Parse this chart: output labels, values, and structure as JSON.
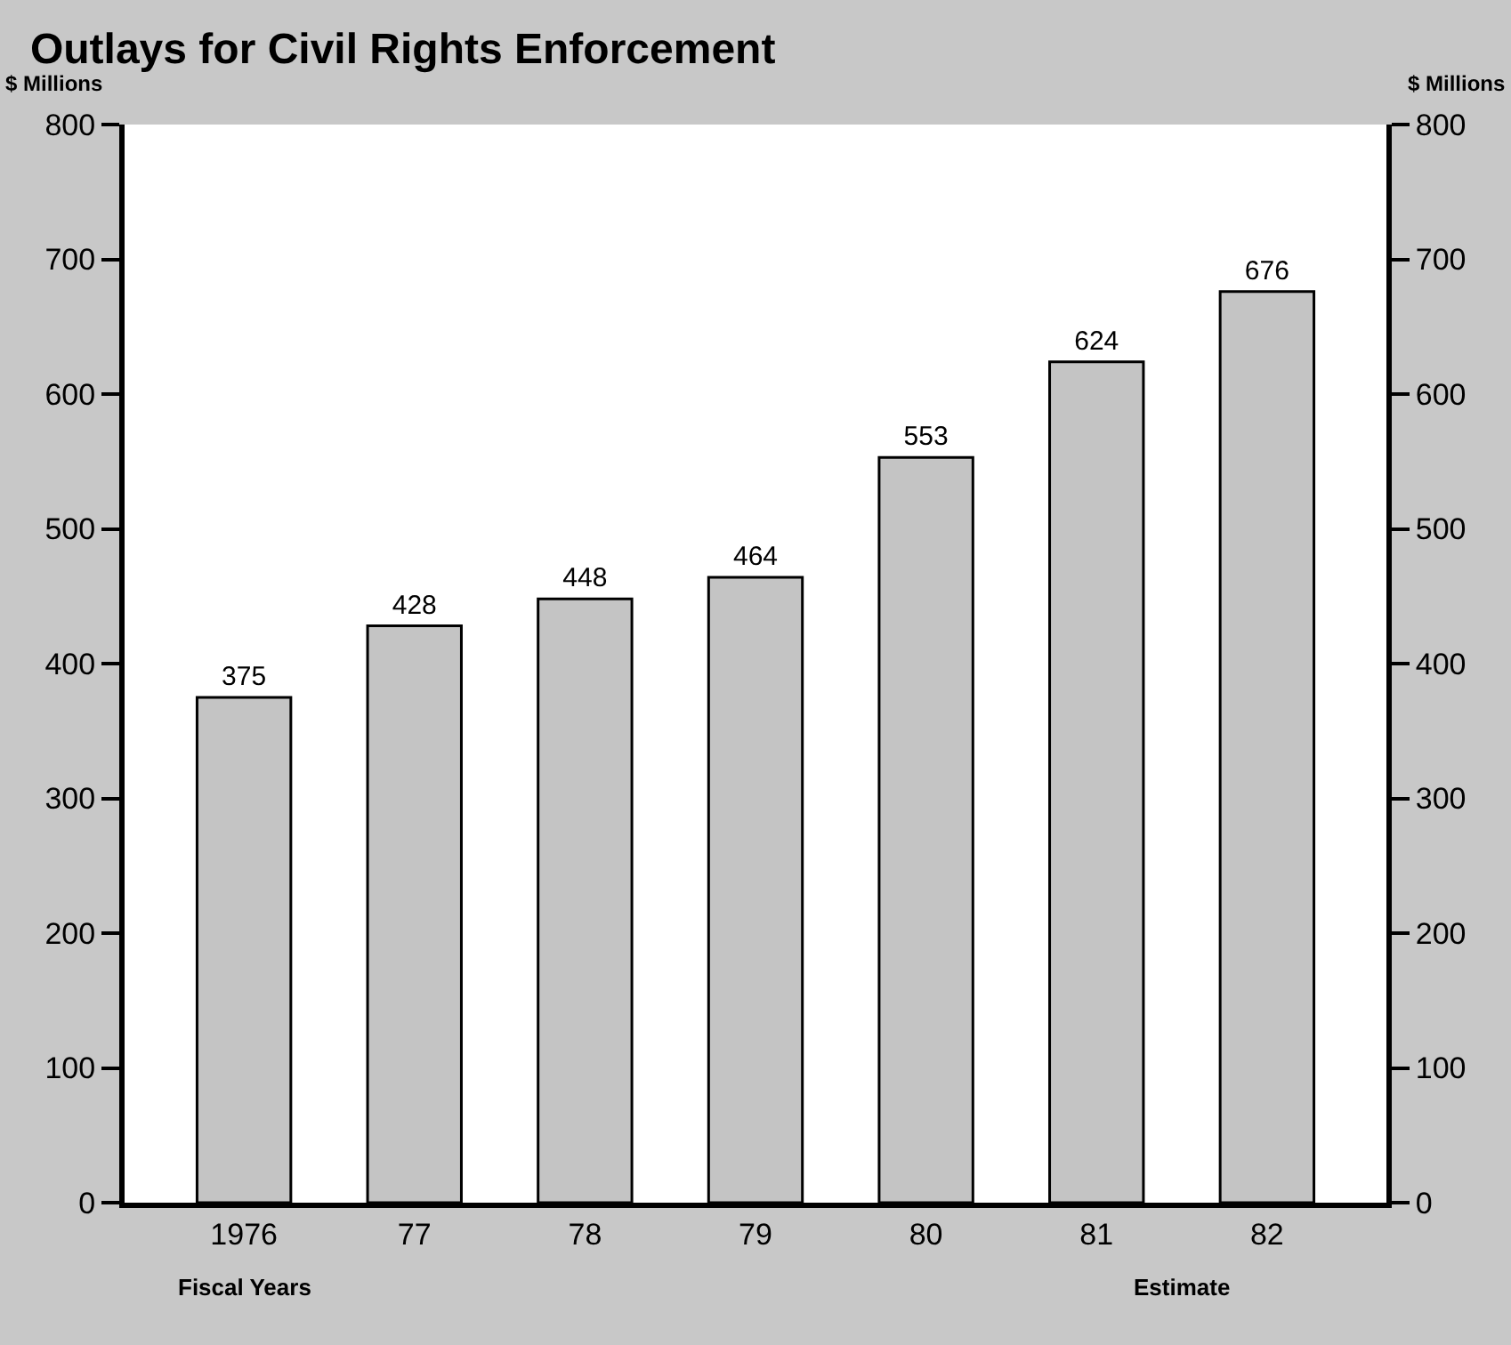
{
  "chart_data": {
    "type": "bar",
    "title": "Outlays for Civil Rights Enforcement",
    "ylabel": "$ Millions",
    "y2label": "$ Millions",
    "xlabel": "Fiscal Years",
    "annotations": [
      "Estimate"
    ],
    "categories": [
      "1976",
      "77",
      "78",
      "79",
      "80",
      "81",
      "82"
    ],
    "values": [
      375,
      428,
      448,
      464,
      553,
      624,
      676
    ],
    "color": "#c4c4c4",
    "ylim": [
      0,
      800
    ],
    "yticks": [
      0,
      100,
      200,
      300,
      400,
      500,
      600,
      700,
      800
    ],
    "y2lim": [
      0,
      800
    ],
    "y2ticks": [
      0,
      100,
      200,
      300,
      400,
      500,
      600,
      700,
      800
    ],
    "data_labels": true,
    "legend": false
  }
}
